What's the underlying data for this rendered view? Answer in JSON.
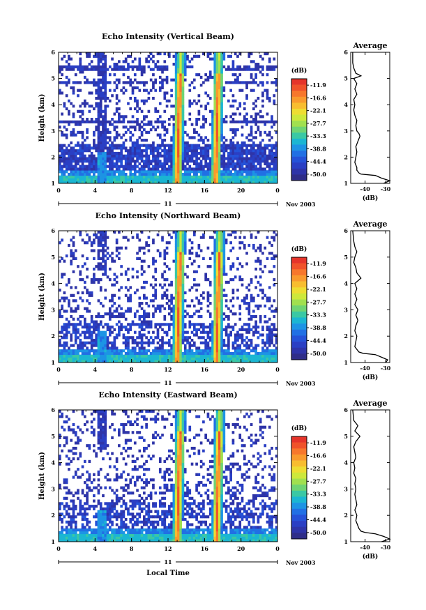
{
  "colorbar": {
    "unit": "(dB)",
    "tick_labels": [
      "-11.9",
      "-16.6",
      "-22.1",
      "-27.7",
      "-33.3",
      "-38.8",
      "-44.4",
      "-50.0"
    ],
    "colors": [
      "#e5342a",
      "#f0522a",
      "#f7772c",
      "#f99a2d",
      "#f8bd2f",
      "#eedd32",
      "#cde83b",
      "#a1e04f",
      "#6fd474",
      "#3ac8a4",
      "#1bb6d2",
      "#1d94e4",
      "#2170e4",
      "#2552d8",
      "#2a3fc4",
      "#2e34a8",
      "#2f2d88"
    ]
  },
  "date_label": "Nov 2003",
  "day_label": "11",
  "x_axis_title": "Local Time",
  "chart_data": [
    {
      "type": "heatmap",
      "title": "Echo Intensity (Vertical Beam)",
      "ylabel": "Height (km)",
      "xlabel": "Local Time",
      "x_ticks": [
        "0",
        "4",
        "8",
        "12",
        "16",
        "20",
        "0"
      ],
      "y_ticks": [
        "1",
        "2",
        "3",
        "4",
        "5",
        "6"
      ],
      "xlim": [
        0,
        24
      ],
      "ylim": [
        1,
        6
      ],
      "rain_bands_hours": [
        13.0,
        17.2
      ],
      "profile": {
        "title": "Average",
        "xlabel": "(dB)",
        "x_ticks": [
          "-40",
          "-30"
        ],
        "y_ticks": [
          "1",
          "2",
          "3",
          "4",
          "5",
          "6"
        ],
        "xlim": [
          -47,
          -28
        ],
        "height_km": [
          1.0,
          1.1,
          1.2,
          1.3,
          1.35,
          1.4,
          1.5,
          1.6,
          1.8,
          2.0,
          2.2,
          2.4,
          2.6,
          2.8,
          2.9,
          3.0,
          3.2,
          3.4,
          3.6,
          3.8,
          4.0,
          4.2,
          4.4,
          4.6,
          4.8,
          5.0,
          5.1,
          5.2,
          5.4,
          5.6,
          6.0
        ],
        "intensity_db": [
          -31,
          -28,
          -32,
          -35,
          -42,
          -43,
          -44,
          -44,
          -45,
          -44.5,
          -44,
          -44.5,
          -43.5,
          -42.5,
          -43,
          -44,
          -44.5,
          -44,
          -45,
          -45.5,
          -45,
          -45.5,
          -44,
          -45,
          -44,
          -45.5,
          -42,
          -44.5,
          -45.5,
          -46,
          -46
        ]
      }
    },
    {
      "type": "heatmap",
      "title": "Echo Intensity (Northward Beam)",
      "ylabel": "Height (km)",
      "xlabel": "Local Time",
      "x_ticks": [
        "0",
        "4",
        "8",
        "12",
        "16",
        "20",
        "0"
      ],
      "y_ticks": [
        "1",
        "2",
        "3",
        "4",
        "5",
        "6"
      ],
      "xlim": [
        0,
        24
      ],
      "ylim": [
        1,
        6
      ],
      "rain_bands_hours": [
        13.0,
        17.3
      ],
      "profile": {
        "title": "Average",
        "xlabel": "(dB)",
        "x_ticks": [
          "-40",
          "-30"
        ],
        "y_ticks": [
          "1",
          "2",
          "3",
          "4",
          "5",
          "6"
        ],
        "xlim": [
          -47,
          -28
        ],
        "height_km": [
          1.0,
          1.1,
          1.2,
          1.3,
          1.35,
          1.4,
          1.5,
          1.6,
          1.8,
          2.0,
          2.2,
          2.4,
          2.6,
          2.8,
          3.0,
          3.2,
          3.4,
          3.6,
          3.8,
          4.0,
          4.2,
          4.4,
          4.6,
          4.8,
          5.0,
          5.2,
          5.4,
          5.6,
          6.0
        ],
        "intensity_db": [
          -30,
          -29,
          -32,
          -35,
          -41,
          -43,
          -44,
          -45,
          -44.5,
          -44,
          -45,
          -44.5,
          -43.5,
          -44.5,
          -43.5,
          -45,
          -44,
          -45,
          -44,
          -45,
          -42,
          -44,
          -44.5,
          -45.5,
          -45,
          -44,
          -45,
          -45.5,
          -46
        ]
      }
    },
    {
      "type": "heatmap",
      "title": "Echo Intensity (Eastward Beam)",
      "ylabel": "Height (km)",
      "xlabel": "Local Time",
      "x_ticks": [
        "0",
        "4",
        "8",
        "12",
        "16",
        "20",
        "0"
      ],
      "y_ticks": [
        "1",
        "2",
        "3",
        "4",
        "5",
        "6"
      ],
      "xlim": [
        0,
        24
      ],
      "ylim": [
        1,
        6
      ],
      "rain_bands_hours": [
        13.0,
        17.3
      ],
      "profile": {
        "title": "Average",
        "xlabel": "(dB)",
        "x_ticks": [
          "-40",
          "-30"
        ],
        "y_ticks": [
          "1",
          "2",
          "3",
          "4",
          "5",
          "6"
        ],
        "xlim": [
          -47,
          -28
        ],
        "height_km": [
          1.0,
          1.1,
          1.2,
          1.3,
          1.35,
          1.4,
          1.5,
          1.6,
          1.8,
          2.0,
          2.2,
          2.4,
          2.6,
          2.8,
          3.0,
          3.2,
          3.4,
          3.6,
          3.8,
          4.0,
          4.2,
          4.4,
          4.6,
          4.8,
          5.0,
          5.2,
          5.4,
          5.6,
          6.0
        ],
        "intensity_db": [
          -32,
          -28,
          -31,
          -35,
          -40,
          -42,
          -43,
          -43.5,
          -44.5,
          -44,
          -45,
          -44,
          -44.5,
          -45,
          -44.5,
          -45,
          -44.5,
          -45.5,
          -45,
          -45.5,
          -44.5,
          -45,
          -45.5,
          -44.5,
          -42.5,
          -45,
          -43.5,
          -45.5,
          -46
        ]
      }
    }
  ]
}
